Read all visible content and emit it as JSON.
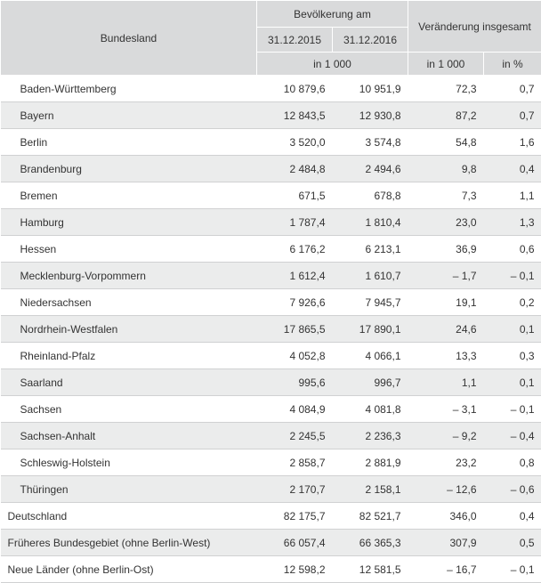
{
  "table": {
    "type": "table",
    "background_color": "#ffffff",
    "header_bg": "#d9dadb",
    "row_alt_bg": "#ebecec",
    "border_color": "#d0d1d2",
    "summary_border_color": "#999999",
    "font_family": "Arial",
    "font_size_pt": 9,
    "text_color": "#333333",
    "columns": {
      "state_width": 288,
      "val_width": 85,
      "pct_width": 65,
      "bundesland": "Bundesland",
      "pop_group": "Bevölkerung am",
      "date1": "31.12.2015",
      "date2": "31.12.2016",
      "change_group": "Veränderung insgesamt",
      "unit_thousand": "in 1 000",
      "unit_percent": "in %"
    },
    "rows": [
      {
        "state": "Baden-Württemberg",
        "p2015": "10 879,6",
        "p2016": "10 951,9",
        "chg": "72,3",
        "pct": "0,7"
      },
      {
        "state": "Bayern",
        "p2015": "12 843,5",
        "p2016": "12 930,8",
        "chg": "87,2",
        "pct": "0,7"
      },
      {
        "state": "Berlin",
        "p2015": "3 520,0",
        "p2016": "3 574,8",
        "chg": "54,8",
        "pct": "1,6"
      },
      {
        "state": "Brandenburg",
        "p2015": "2 484,8",
        "p2016": "2 494,6",
        "chg": "9,8",
        "pct": "0,4"
      },
      {
        "state": "Bremen",
        "p2015": "671,5",
        "p2016": "678,8",
        "chg": "7,3",
        "pct": "1,1"
      },
      {
        "state": "Hamburg",
        "p2015": "1 787,4",
        "p2016": "1 810,4",
        "chg": "23,0",
        "pct": "1,3"
      },
      {
        "state": "Hessen",
        "p2015": "6 176,2",
        "p2016": "6 213,1",
        "chg": "36,9",
        "pct": "0,6"
      },
      {
        "state": "Mecklenburg-Vorpommern",
        "p2015": "1 612,4",
        "p2016": "1 610,7",
        "chg": "– 1,7",
        "pct": "– 0,1"
      },
      {
        "state": "Niedersachsen",
        "p2015": "7 926,6",
        "p2016": "7 945,7",
        "chg": "19,1",
        "pct": "0,2"
      },
      {
        "state": "Nordrhein-Westfalen",
        "p2015": "17 865,5",
        "p2016": "17 890,1",
        "chg": "24,6",
        "pct": "0,1"
      },
      {
        "state": "Rheinland-Pfalz",
        "p2015": "4 052,8",
        "p2016": "4 066,1",
        "chg": "13,3",
        "pct": "0,3"
      },
      {
        "state": "Saarland",
        "p2015": "995,6",
        "p2016": "996,7",
        "chg": "1,1",
        "pct": "0,1"
      },
      {
        "state": "Sachsen",
        "p2015": "4 084,9",
        "p2016": "4 081,8",
        "chg": "– 3,1",
        "pct": "– 0,1"
      },
      {
        "state": "Sachsen-Anhalt",
        "p2015": "2 245,5",
        "p2016": "2 236,3",
        "chg": "– 9,2",
        "pct": "– 0,4"
      },
      {
        "state": "Schleswig-Holstein",
        "p2015": "2 858,7",
        "p2016": "2 881,9",
        "chg": "23,2",
        "pct": "0,8"
      },
      {
        "state": "Thüringen",
        "p2015": "2 170,7",
        "p2016": "2 158,1",
        "chg": "– 12,6",
        "pct": "– 0,6"
      }
    ],
    "summary": [
      {
        "state": "Deutschland",
        "p2015": "82 175,7",
        "p2016": "82 521,7",
        "chg": "346,0",
        "pct": "0,4"
      },
      {
        "state": "Früheres Bundesgebiet (ohne Berlin-West)",
        "p2015": "66 057,4",
        "p2016": "66 365,3",
        "chg": "307,9",
        "pct": "0,5"
      },
      {
        "state": "Neue Länder (ohne Berlin-Ost)",
        "p2015": "12 598,2",
        "p2016": "12 581,5",
        "chg": "– 16,7",
        "pct": "– 0,1"
      }
    ]
  }
}
